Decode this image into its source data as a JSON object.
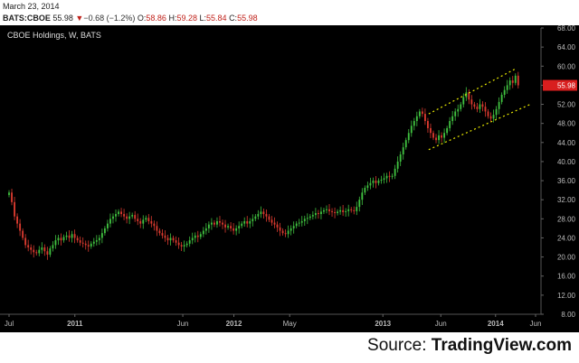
{
  "header": {
    "date": "March 23, 2014",
    "symbol": "BATS:CBOE",
    "last": "55.98",
    "change_arrow": "▼",
    "change": "−0.68 (−1.2%)",
    "o_label": "O:",
    "o_value": "58.86",
    "h_label": "H:",
    "h_value": "59.28",
    "l_label": "L:",
    "l_value": "55.84",
    "c_label": "C:",
    "c_value": "55.98"
  },
  "source": {
    "prefix": "Source: ",
    "brand": "TradingView.com"
  },
  "colors": {
    "background": "#000000",
    "up": "#3fbf3f",
    "down": "#d93a2f",
    "channel": "#e8e800",
    "price_tag": "#d81e1e",
    "axis_text": "#bbbbbb"
  },
  "chart_data": {
    "type": "candlestick",
    "title": "CBOE Holdings, W, BATS",
    "interval": "weekly",
    "ylim": [
      8,
      68
    ],
    "y_ticks": [
      "8.00",
      "12.00",
      "16.00",
      "20.00",
      "24.00",
      "28.00",
      "32.00",
      "36.00",
      "40.00",
      "44.00",
      "48.00",
      "52.00",
      "56.00",
      "60.00",
      "64.00",
      "68.00"
    ],
    "x_ticks": [
      {
        "label": "Jul",
        "t": 0.0
      },
      {
        "label": "2011",
        "t": 0.125
      },
      {
        "label": "Jun",
        "t": 0.33
      },
      {
        "label": "2012",
        "t": 0.427
      },
      {
        "label": "May",
        "t": 0.533
      },
      {
        "label": "2013",
        "t": 0.71
      },
      {
        "label": "Jun",
        "t": 0.82
      },
      {
        "label": "2014",
        "t": 0.924
      },
      {
        "label": "Jun",
        "t": 1.0
      }
    ],
    "last_price": 55.98,
    "closes": [
      33.5,
      31.5,
      28.5,
      27,
      25.5,
      24,
      22.5,
      22,
      21.5,
      21,
      20.8,
      21.5,
      22,
      21.2,
      20.5,
      21.8,
      22.5,
      23.5,
      24,
      23.5,
      24.2,
      24.5,
      24,
      24.8,
      24,
      23.5,
      23,
      22.8,
      22.5,
      22.2,
      22.8,
      23.2,
      23.5,
      24,
      25,
      26,
      27,
      28,
      28.5,
      29,
      29.5,
      29,
      28.5,
      28,
      28.5,
      28.8,
      28,
      27.5,
      27,
      27.8,
      28.2,
      27.5,
      27,
      26.5,
      25.5,
      25,
      24.5,
      24,
      23.5,
      24,
      23.5,
      23,
      22.5,
      22.2,
      22.5,
      22.8,
      23.5,
      24,
      24.5,
      24.2,
      24.8,
      25.5,
      26,
      26.8,
      27.2,
      26.8,
      27.5,
      27.2,
      26.8,
      26.2,
      26.5,
      26,
      25.5,
      26,
      26.5,
      27,
      27.5,
      27,
      27.5,
      28,
      28.5,
      29,
      29.5,
      29,
      28.5,
      27.8,
      27.2,
      26.8,
      26.2,
      25.5,
      25,
      24.8,
      25.5,
      26,
      26.5,
      27,
      27.2,
      27.5,
      28,
      28.2,
      28.5,
      28.8,
      29.2,
      29,
      29.5,
      29.8,
      30,
      29.6,
      29.4,
      29.2,
      29.5,
      29.8,
      29.4,
      29.6,
      30,
      29.8,
      29.6,
      30.5,
      32,
      33.5,
      34.5,
      35,
      35.5,
      36,
      35.5,
      36,
      36.2,
      36.5,
      37,
      36.8,
      37,
      38.5,
      40,
      41.5,
      43,
      44.5,
      46,
      47.5,
      48.5,
      49.5,
      50.5,
      50,
      48.5,
      47,
      46,
      45,
      44.5,
      45.5,
      45,
      46,
      47,
      48.5,
      49.5,
      50.5,
      51,
      52,
      53.5,
      54.5,
      53,
      52,
      51.5,
      51,
      52,
      51.5,
      50.5,
      49.5,
      49,
      49.8,
      51,
      52.5,
      54,
      55,
      56,
      57,
      56.5,
      58,
      55.98
    ],
    "channel_upper": {
      "from": [
        0.797,
        50.0
      ],
      "to": [
        0.963,
        59.5
      ]
    },
    "channel_lower": {
      "from": [
        0.797,
        42.5
      ],
      "to": [
        0.99,
        52.0
      ]
    }
  }
}
